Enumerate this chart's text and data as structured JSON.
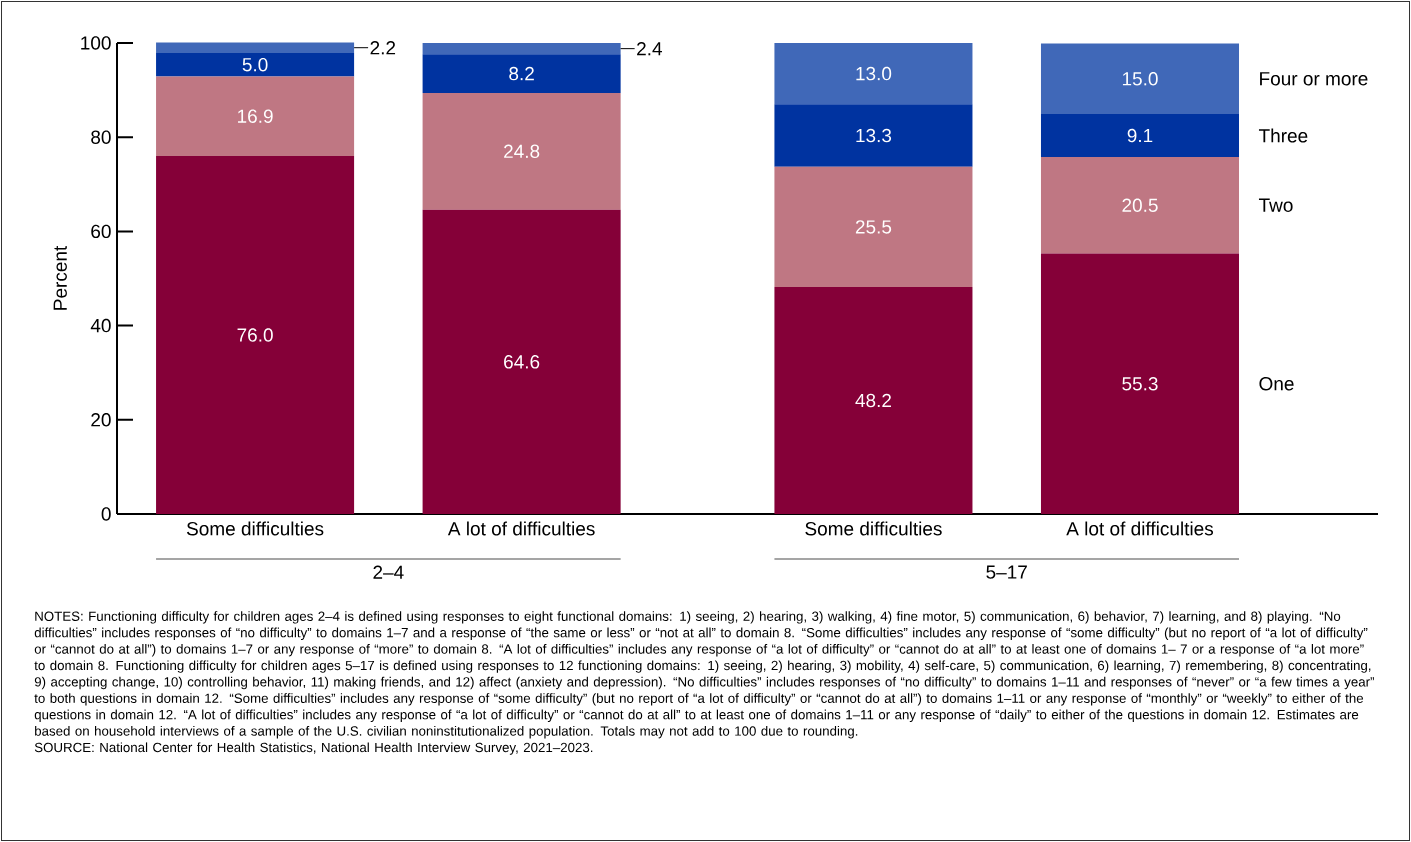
{
  "chart_data": {
    "type": "bar",
    "stacked": true,
    "ylabel": "Percent",
    "categories": [
      "Some difficulties",
      "A lot of difficulties",
      "Some difficulties",
      "A lot of difficulties"
    ],
    "series": [
      {
        "name": "One",
        "color": "#850038",
        "values": [
          76.0,
          64.6,
          48.2,
          55.3
        ],
        "value_labels": [
          "76.0",
          "64.6",
          "48.2",
          "55.3"
        ]
      },
      {
        "name": "Two",
        "color": "#bf7783",
        "values": [
          16.9,
          24.8,
          25.5,
          20.5
        ],
        "value_labels": [
          "16.9",
          "24.8",
          "25.5",
          "20.5"
        ]
      },
      {
        "name": "Three",
        "color": "#0033a0",
        "values": [
          5.0,
          8.2,
          13.3,
          9.1
        ],
        "value_labels": [
          "5.0",
          "8.2",
          "13.3",
          "9.1"
        ]
      },
      {
        "name": "Four or more",
        "color": "#4068b8",
        "values": [
          2.2,
          2.4,
          13.0,
          15.0
        ],
        "value_labels": [
          "2.2",
          "2.4",
          "13.0",
          "15.0"
        ]
      }
    ],
    "ylim": [
      0,
      100
    ],
    "yticks": [
      0,
      20,
      40,
      60,
      80,
      100
    ],
    "legend": "right",
    "annotations": [
      "2–4",
      "5–17",
      "NOTES: Functioning difficulty for children ages 2–4 is defined using responses to eight functional domains: 1) seeing, 2) hearing, 3) walking, 4) fine motor, 5) communication, 6) behavior, 7) learning, and 8) playing. “No difficulties” includes responses of “no difficulty” to domains 1–7 and a response of “the same or less” or “not at all” to domain 8. “Some difficulties” includes any response of “some difficulty” (but no report of “a lot of difficulty” or “cannot do at all”) to domains 1–7 or any response of “more” to domain 8. “A lot of difficulties” includes any response of “a lot of difficulty” or “cannot do at all” to at least one of domains 1– 7 or a response of “a lot more” to domain 8. Functioning difficulty for children ages 5–17 is defined using responses to 12 functioning domains: 1) seeing, 2) hearing, 3) mobility, 4) self-care, 5) communication, 6) learning, 7) remembering, 8) concentrating, 9) accepting change, 10) controlling behavior, 11) making friends, and 12) affect (anxiety and depression). “No difficulties” includes responses of “no difficulty” to domains 1–11 and responses of “never” or “a few times a year” to both questions in domain 12. “Some difficulties” includes any response of “some difficulty” (but no report of “a lot of difficulty” or “cannot do at all”) to domains 1–11 or any response of “monthly” or “weekly” to either of the questions in domain 12. “A lot of difficulties” includes any response of “a lot of difficulty” or “cannot do at all” to at least one of domains 1–11 or any response of “daily” to either of the questions in domain 12. Estimates are based on household interviews of a sample of the U.S. civilian noninstitutionalized population. Totals may not add to 100 due to rounding.",
      "SOURCE: National Center for Health Statistics, National Health Interview Survey, 2021–2023."
    ]
  }
}
